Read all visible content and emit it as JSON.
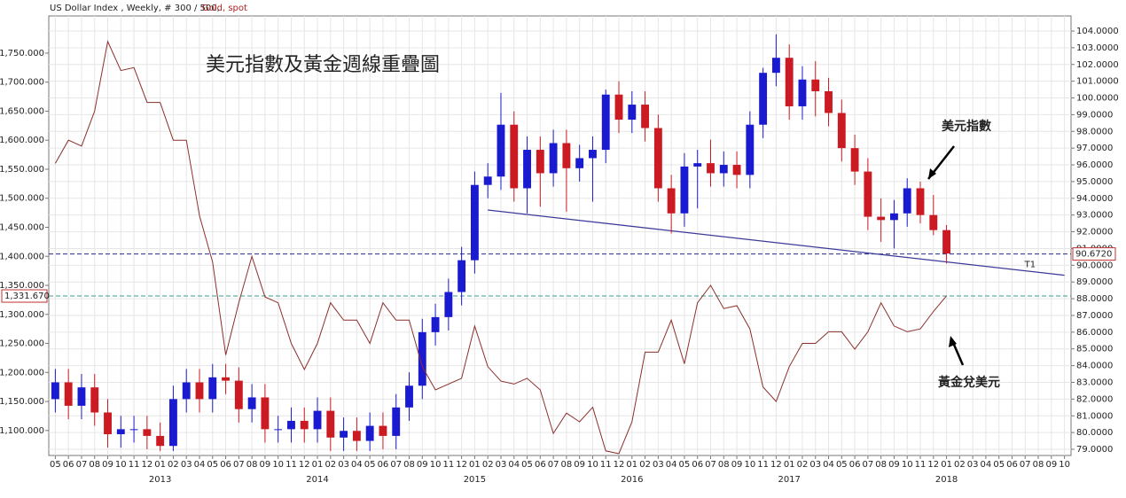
{
  "chart_data": {
    "type": "candlestick",
    "subtitle": "US Dollar Index , Weekly, # 300 / 500,",
    "title": "美元指數及黃金週線重疊圖",
    "categories": [
      "05",
      "06",
      "07",
      "08",
      "09",
      "10",
      "11",
      "12",
      "01",
      "02",
      "03",
      "04",
      "05",
      "06",
      "07",
      "08",
      "09",
      "10",
      "11",
      "12",
      "01",
      "02",
      "03",
      "04",
      "05",
      "06",
      "07",
      "08",
      "09",
      "10",
      "11",
      "12",
      "01",
      "02",
      "03",
      "04",
      "05",
      "06",
      "07",
      "08",
      "09",
      "10",
      "11",
      "12",
      "01",
      "02",
      "03",
      "04",
      "05",
      "06",
      "07",
      "08",
      "09",
      "10",
      "11",
      "12",
      "01",
      "02",
      "03",
      "04",
      "05",
      "06",
      "07",
      "08",
      "09",
      "10",
      "11",
      "12",
      "01",
      "02",
      "03",
      "04",
      "05",
      "06",
      "07",
      "08",
      "09",
      "10"
    ],
    "year_ticks": [
      {
        "value": 8,
        "label": "2013"
      },
      {
        "value": 20,
        "label": "2014"
      },
      {
        "value": 32,
        "label": "2015"
      },
      {
        "value": 44,
        "label": "2016"
      },
      {
        "value": 56,
        "label": "2017"
      },
      {
        "value": 68,
        "label": "2018"
      }
    ],
    "series": [
      {
        "axis": "y2",
        "up_color": "#1a1ad0",
        "down_color": "#cc1a22",
        "open": [
          82.0,
          83.0,
          81.6,
          82.7,
          81.2,
          79.9,
          80.2,
          80.2,
          79.8,
          79.2,
          82.0,
          83.0,
          82.0,
          83.3,
          83.1,
          81.4,
          82.1,
          80.2,
          80.2,
          80.7,
          80.2,
          81.3,
          79.7,
          80.1,
          79.5,
          80.4,
          79.8,
          81.5,
          82.8,
          86.0,
          86.9,
          88.4,
          90.3,
          94.8,
          95.3,
          98.4,
          94.6,
          96.9,
          95.5,
          97.3,
          95.8,
          96.4,
          96.9,
          100.2,
          98.7,
          99.6,
          98.2,
          94.6,
          93.1,
          95.9,
          96.1,
          95.5,
          96.0,
          95.4,
          98.4,
          101.5,
          102.4,
          99.5,
          101.1,
          100.4,
          99.1,
          97.0,
          95.6,
          92.9,
          92.7,
          93.1,
          94.6,
          93.0,
          92.1,
          null,
          null,
          null,
          null,
          null,
          null,
          null,
          null,
          null
        ],
        "high": [
          83.8,
          83.8,
          83.5,
          83.5,
          82.0,
          81.0,
          81.0,
          81.0,
          80.6,
          82.8,
          83.8,
          83.8,
          84.1,
          84.1,
          83.9,
          82.9,
          82.9,
          81.0,
          81.5,
          81.5,
          82.1,
          82.1,
          80.9,
          80.9,
          81.2,
          81.2,
          82.3,
          83.6,
          86.8,
          87.7,
          89.2,
          91.1,
          95.6,
          96.1,
          100.3,
          99.2,
          97.7,
          97.7,
          98.1,
          98.1,
          97.2,
          97.7,
          100.5,
          101.0,
          100.4,
          100.4,
          99.0,
          95.4,
          96.7,
          96.9,
          97.5,
          96.8,
          96.8,
          99.2,
          101.8,
          103.8,
          103.2,
          101.9,
          102.2,
          101.2,
          99.9,
          97.8,
          96.4,
          94.0,
          93.9,
          95.2,
          95.0,
          94.2,
          92.4,
          null,
          null,
          null,
          null,
          null,
          null,
          null,
          null,
          null
        ],
        "low": [
          81.2,
          80.8,
          80.8,
          80.4,
          79.1,
          79.1,
          79.4,
          79.0,
          78.9,
          78.9,
          81.2,
          81.2,
          81.2,
          82.3,
          80.6,
          80.6,
          79.4,
          79.4,
          79.4,
          79.4,
          79.4,
          78.9,
          78.9,
          78.9,
          78.9,
          79.0,
          79.0,
          80.7,
          82.0,
          85.2,
          86.1,
          87.6,
          89.5,
          94.0,
          94.5,
          93.8,
          93.1,
          93.5,
          94.7,
          93.2,
          95.0,
          93.8,
          96.1,
          97.9,
          97.9,
          97.4,
          93.8,
          91.9,
          92.3,
          93.4,
          94.7,
          94.7,
          94.6,
          94.6,
          97.6,
          100.7,
          98.7,
          98.7,
          98.9,
          98.3,
          96.2,
          94.8,
          92.1,
          91.4,
          91.0,
          92.3,
          92.5,
          91.8,
          90.1,
          null,
          null,
          null,
          null,
          null,
          null,
          null,
          null,
          null
        ],
        "close": [
          83.0,
          81.6,
          82.7,
          81.2,
          79.9,
          80.2,
          80.2,
          79.8,
          79.2,
          82.0,
          83.0,
          82.0,
          83.3,
          83.1,
          81.4,
          82.1,
          80.2,
          80.2,
          80.7,
          80.2,
          81.3,
          79.7,
          80.1,
          79.5,
          80.4,
          79.8,
          81.5,
          82.8,
          86.0,
          86.9,
          88.4,
          90.3,
          94.8,
          95.3,
          98.4,
          94.6,
          96.9,
          95.5,
          97.3,
          95.8,
          96.4,
          96.9,
          100.2,
          98.7,
          99.6,
          98.2,
          94.6,
          93.1,
          95.9,
          96.1,
          95.5,
          96.0,
          95.4,
          98.4,
          101.5,
          102.4,
          99.5,
          101.1,
          100.4,
          99.1,
          97.0,
          95.6,
          92.9,
          92.7,
          93.1,
          94.6,
          93.0,
          92.1,
          90.7,
          null,
          null,
          null,
          null,
          null,
          null,
          null,
          null,
          null
        ]
      },
      {
        "name": "Gold, spot",
        "axis": "y",
        "color": "#8b2f2a",
        "values": [
          1560,
          1600,
          1590,
          1650,
          1770,
          1720,
          1725,
          1665,
          1665,
          1600,
          1600,
          1470,
          1390,
          1230,
          1320,
          1400,
          1330,
          1320,
          1250,
          1205,
          1250,
          1320,
          1290,
          1290,
          1250,
          1320,
          1290,
          1290,
          1210,
          1170,
          1180,
          1190,
          1280,
          1210,
          1185,
          1180,
          1190,
          1170,
          1095,
          1130,
          1115,
          1140,
          1065,
          1060,
          1115,
          1235,
          1235,
          1290,
          1215,
          1320,
          1350,
          1310,
          1315,
          1275,
          1175,
          1150,
          1210,
          1250,
          1250,
          1270,
          1270,
          1240,
          1270,
          1320,
          1280,
          1270,
          1275,
          1305,
          1332,
          null,
          null,
          null,
          null,
          null,
          null,
          null,
          null,
          null
        ]
      }
    ],
    "ylim": [
      1057,
      1814
    ],
    "yticks": [
      {
        "value": 1100,
        "label": "1,100.000"
      },
      {
        "value": 1150,
        "label": "1,150.000"
      },
      {
        "value": 1200,
        "label": "1,200.000"
      },
      {
        "value": 1250,
        "label": "1,250.000"
      },
      {
        "value": 1300,
        "label": "1,300.000"
      },
      {
        "value": 1350,
        "label": "1,350.000"
      },
      {
        "value": 1400,
        "label": "1,400.000"
      },
      {
        "value": 1450,
        "label": "1,450.000"
      },
      {
        "value": 1500,
        "label": "1,500.000"
      },
      {
        "value": 1550,
        "label": "1,550.000"
      },
      {
        "value": 1600,
        "label": "1,600.000"
      },
      {
        "value": 1650,
        "label": "1,650.000"
      },
      {
        "value": 1700,
        "label": "1,700.000"
      },
      {
        "value": 1750,
        "label": "1,750.000"
      }
    ],
    "y2lim": [
      78.63,
      104.9
    ],
    "y2ticks": [
      {
        "value": 79,
        "label": "79.0000"
      },
      {
        "value": 80,
        "label": "80.0000"
      },
      {
        "value": 81,
        "label": "81.0000"
      },
      {
        "value": 82,
        "label": "82.0000"
      },
      {
        "value": 83,
        "label": "83.0000"
      },
      {
        "value": 84,
        "label": "84.0000"
      },
      {
        "value": 85,
        "label": "85.0000"
      },
      {
        "value": 86,
        "label": "86.0000"
      },
      {
        "value": 87,
        "label": "87.0000"
      },
      {
        "value": 88,
        "label": "88.0000"
      },
      {
        "value": 89,
        "label": "89.0000"
      },
      {
        "value": 90,
        "label": "90.0000"
      },
      {
        "value": 91,
        "label": "91.0000"
      },
      {
        "value": 92,
        "label": "92.0000"
      },
      {
        "value": 93,
        "label": "93.0000"
      },
      {
        "value": 94,
        "label": "94.0000"
      },
      {
        "value": 95,
        "label": "95.0000"
      },
      {
        "value": 96,
        "label": "96.0000"
      },
      {
        "value": 97,
        "label": "97.0000"
      },
      {
        "value": 98,
        "label": "98.0000"
      },
      {
        "value": 99,
        "label": "99.0000"
      },
      {
        "value": 100,
        "label": "100.0000"
      },
      {
        "value": 101,
        "label": "101.0000"
      },
      {
        "value": 102,
        "label": "102.0000"
      },
      {
        "value": 103,
        "label": "103.0000"
      },
      {
        "value": 104,
        "label": "104.0000"
      }
    ],
    "ref_lines": [
      {
        "axis": "y",
        "value": 1331.67,
        "label": "1,331.670",
        "color": "#3a9a8a"
      },
      {
        "axis": "y2",
        "value": 90.672,
        "label": "90.6720",
        "color": "#2a2a8a"
      }
    ],
    "trendline": {
      "label": "T1",
      "x": [
        33,
        77
      ],
      "y": [
        93.3,
        89.4
      ],
      "color": "#3a3a9a"
    },
    "annotations": [
      "美元指數",
      "黃金兌美元"
    ],
    "grid": true
  }
}
